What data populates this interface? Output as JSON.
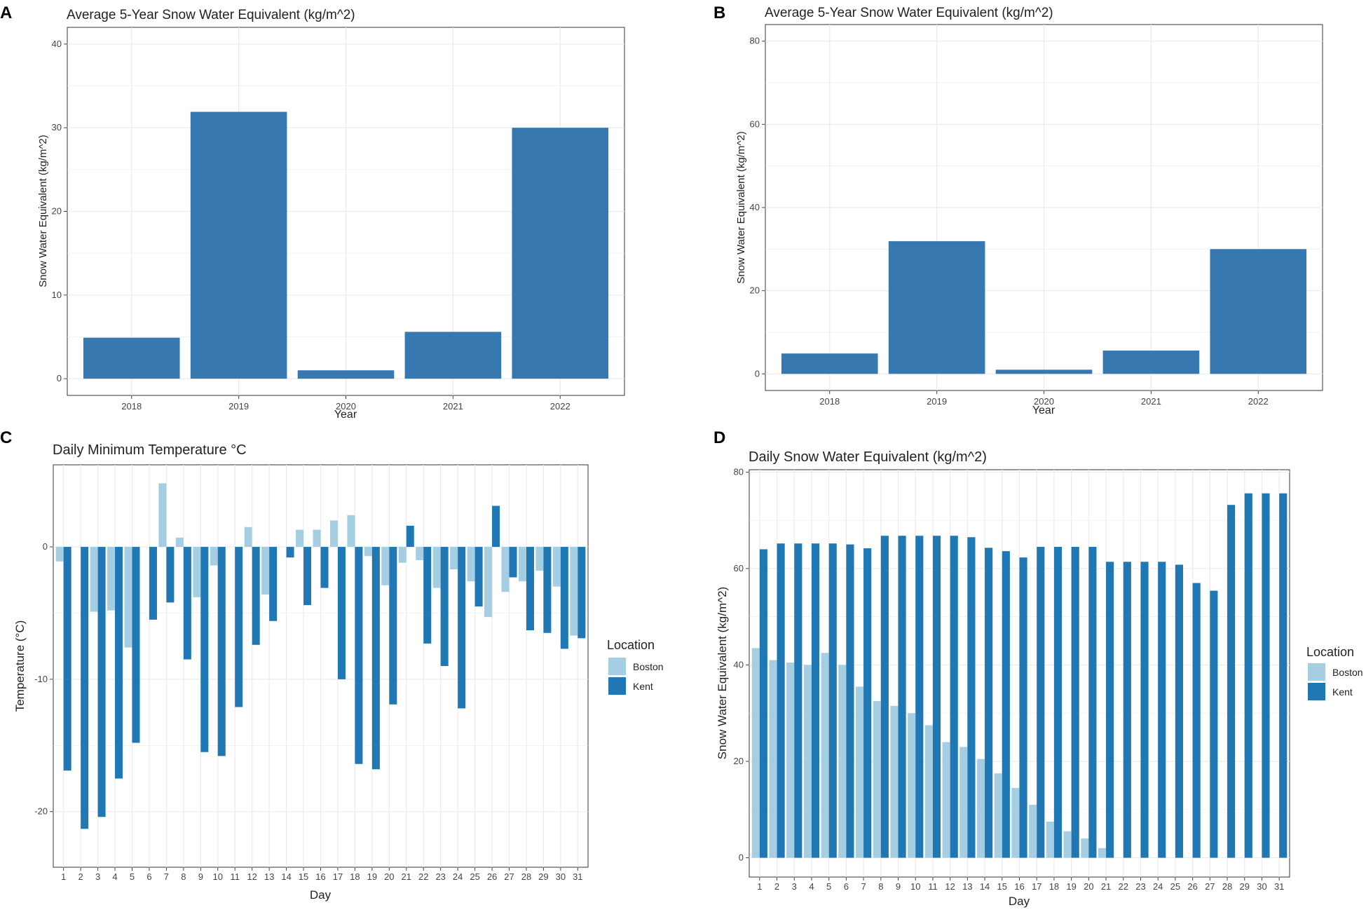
{
  "colors": {
    "bar": "#3878B0",
    "boston": "#A6CEE3",
    "kent": "#1F78B4",
    "grid": "#EBEBEB",
    "frame": "#333333"
  },
  "chart_data": [
    {
      "panel": "A",
      "type": "bar",
      "title": "Average 5-Year Snow Water Equivalent (kg/m^2)",
      "xlabel": "Year",
      "ylabel": "Snow Water Equivalent (kg/m^2)",
      "categories": [
        "2018",
        "2019",
        "2020",
        "2021",
        "2022"
      ],
      "values": [
        4.9,
        31.9,
        1.0,
        5.6,
        30.0
      ],
      "ylim": [
        -2,
        42
      ],
      "yticks": [
        0,
        10,
        20,
        30,
        40
      ],
      "grid": true,
      "legend": null
    },
    {
      "panel": "B",
      "type": "bar",
      "title": "Average 5-Year Snow Water Equivalent (kg/m^2)",
      "xlabel": "Year",
      "ylabel": "Snow Water Equivalent (kg/m^2)",
      "categories": [
        "2018",
        "2019",
        "2020",
        "2021",
        "2022"
      ],
      "values": [
        4.9,
        31.9,
        1.0,
        5.6,
        30.0
      ],
      "ylim": [
        -4,
        84
      ],
      "yticks": [
        0,
        20,
        40,
        60,
        80
      ],
      "grid": true,
      "legend": null
    },
    {
      "panel": "C",
      "type": "bar",
      "title": "Daily Minimum Temperature °C",
      "xlabel": "Day",
      "ylabel": "Temperature (°C)",
      "categories": [
        "1",
        "2",
        "3",
        "4",
        "5",
        "6",
        "7",
        "8",
        "9",
        "10",
        "11",
        "12",
        "13",
        "14",
        "15",
        "16",
        "17",
        "18",
        "19",
        "20",
        "21",
        "22",
        "23",
        "24",
        "25",
        "26",
        "27",
        "28",
        "29",
        "30",
        "31"
      ],
      "series": [
        {
          "name": "Boston",
          "values": [
            -1.1,
            0,
            -4.9,
            -4.8,
            -7.6,
            0,
            4.8,
            0.7,
            -3.8,
            -1.4,
            0,
            1.5,
            -3.6,
            0,
            1.3,
            1.3,
            2.0,
            2.4,
            -0.7,
            -2.9,
            -1.2,
            -1.0,
            -3.1,
            -1.7,
            -2.6,
            -5.3,
            -3.4,
            -2.6,
            -1.8,
            -3.0,
            -6.7
          ]
        },
        {
          "name": "Kent",
          "values": [
            -16.9,
            -21.3,
            -20.4,
            -17.5,
            -14.8,
            -5.5,
            -4.2,
            -8.5,
            -15.5,
            -15.8,
            -12.1,
            -7.4,
            -5.6,
            -0.8,
            -4.4,
            -3.1,
            -10.0,
            -16.4,
            -16.8,
            -11.9,
            1.6,
            -7.3,
            -9.0,
            -12.2,
            -4.5,
            3.1,
            -2.3,
            -6.3,
            -6.5,
            -7.7,
            -6.9
          ]
        }
      ],
      "ylim": [
        -24.2,
        6.2
      ],
      "yticks": [
        -20,
        -10,
        0
      ],
      "grid": true,
      "legend": {
        "title": "Location",
        "entries": [
          "Boston",
          "Kent"
        ],
        "position": "right"
      }
    },
    {
      "panel": "D",
      "type": "bar",
      "title": "Daily Snow Water Equivalent (kg/m^2)",
      "xlabel": "Day",
      "ylabel": "Snow Water Equivalent (kg/m^2)",
      "categories": [
        "1",
        "2",
        "3",
        "4",
        "5",
        "6",
        "7",
        "8",
        "9",
        "10",
        "11",
        "12",
        "13",
        "14",
        "15",
        "16",
        "17",
        "18",
        "19",
        "20",
        "21",
        "22",
        "23",
        "24",
        "25",
        "26",
        "27",
        "28",
        "29",
        "30",
        "31"
      ],
      "series": [
        {
          "name": "Boston",
          "values": [
            43.5,
            41.0,
            40.5,
            40.0,
            42.5,
            40.0,
            35.5,
            32.5,
            31.5,
            30.0,
            27.5,
            24.0,
            23.0,
            20.5,
            17.5,
            14.5,
            11.0,
            7.5,
            5.5,
            4.0,
            2.0,
            0,
            0,
            0,
            0,
            0,
            0,
            0,
            0,
            0,
            0
          ]
        },
        {
          "name": "Kent",
          "values": [
            64.0,
            65.2,
            65.2,
            65.2,
            65.2,
            65.0,
            64.2,
            66.8,
            66.8,
            66.8,
            66.8,
            66.8,
            66.5,
            64.3,
            63.6,
            62.3,
            64.5,
            64.5,
            64.5,
            64.5,
            61.4,
            61.4,
            61.4,
            61.4,
            60.8,
            57.0,
            55.4,
            73.2,
            75.6,
            75.6,
            75.6
          ]
        }
      ],
      "ylim": [
        -4,
        80.5
      ],
      "yticks": [
        0,
        20,
        40,
        60,
        80
      ],
      "grid": true,
      "legend": {
        "title": "Location",
        "entries": [
          "Boston",
          "Kent"
        ],
        "position": "right"
      }
    }
  ]
}
